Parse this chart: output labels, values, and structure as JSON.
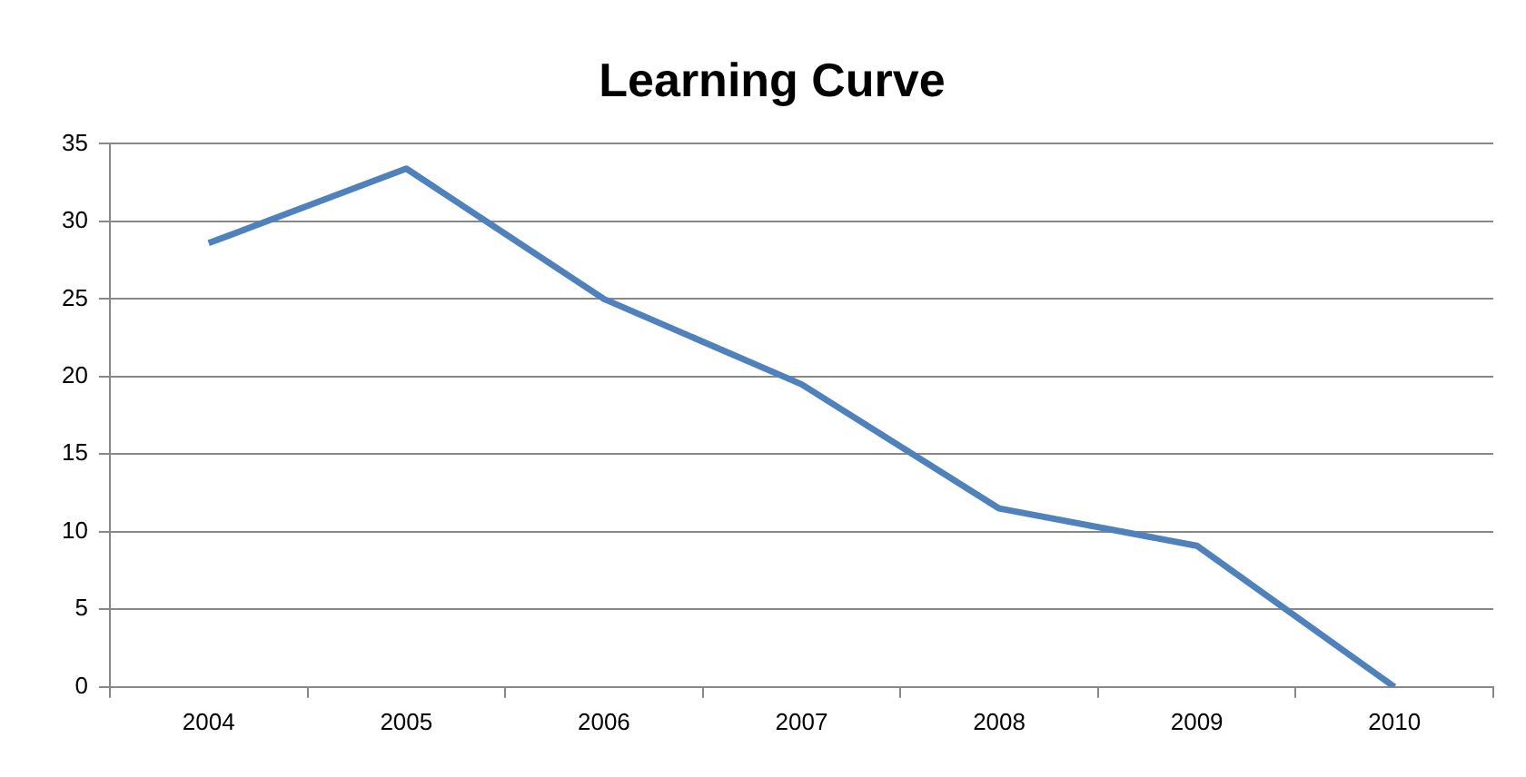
{
  "chart_data": {
    "type": "line",
    "title": "Learning Curve",
    "categories": [
      "2004",
      "2005",
      "2006",
      "2007",
      "2008",
      "2009",
      "2010"
    ],
    "series": [
      {
        "color": "#4f81bd",
        "values": [
          28.6,
          33.4,
          25,
          19.5,
          11.5,
          9.1,
          0
        ]
      }
    ],
    "ylim": [
      0,
      35
    ],
    "yticks": [
      0,
      5,
      10,
      15,
      20,
      25,
      30,
      35
    ],
    "grid": "y",
    "legend": false,
    "marker": "none",
    "line_style": "solid"
  }
}
